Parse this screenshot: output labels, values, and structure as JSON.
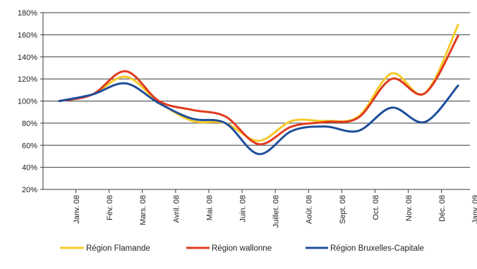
{
  "chart_data": {
    "type": "line",
    "title": "",
    "xlabel": "",
    "ylabel": "",
    "ylim": [
      0.2,
      1.8
    ],
    "y_ticks": [
      "20%",
      "40%",
      "60%",
      "80%",
      "100%",
      "120%",
      "140%",
      "160%",
      "180%"
    ],
    "grid": "horizontal",
    "legend_position": "bottom",
    "categories": [
      "Janv. 08",
      "Fév. 08",
      "Mars. 08",
      "Avril. 08",
      "Mai. 08",
      "Juin. 08",
      "Juillet. 08",
      "Août. 08",
      "Sept. 08",
      "Oct. 08",
      "Nov. 08",
      "Déc. 08",
      "Janv. 09"
    ],
    "series": [
      {
        "name": "Région Flamande",
        "color": "#f5c928",
        "values": [
          1.0,
          1.06,
          1.22,
          0.99,
          0.82,
          0.8,
          0.64,
          0.82,
          0.82,
          0.86,
          1.25,
          1.07,
          1.69
        ]
      },
      {
        "name": "Région wallonne",
        "color": "#e03a1e",
        "values": [
          1.0,
          1.06,
          1.27,
          1.0,
          0.92,
          0.86,
          0.61,
          0.77,
          0.81,
          0.85,
          1.2,
          1.07,
          1.59
        ]
      },
      {
        "name": "Région Bruxelles-Capitale",
        "color": "#1f4e9a",
        "values": [
          1.0,
          1.06,
          1.16,
          0.98,
          0.84,
          0.8,
          0.52,
          0.73,
          0.77,
          0.73,
          0.94,
          0.81,
          1.14
        ]
      }
    ]
  }
}
